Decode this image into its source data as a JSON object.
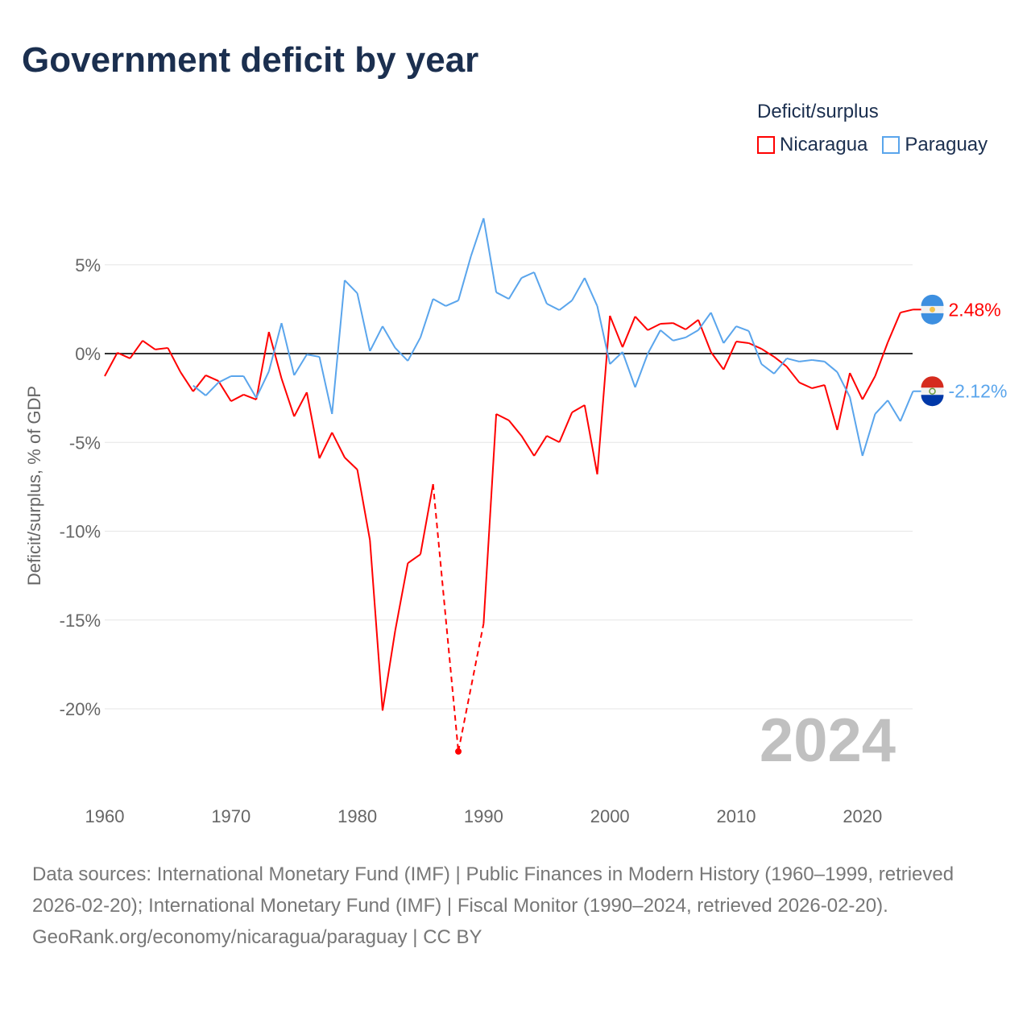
{
  "title": "Government deficit by year",
  "legend": {
    "title": "Deficit/surplus",
    "items": [
      {
        "label": "Nicaragua",
        "color": "#ff0000"
      },
      {
        "label": "Paraguay",
        "color": "#5aa5ec"
      }
    ]
  },
  "year_watermark": "2024",
  "footer": {
    "sources": "Data sources: International Monetary Fund (IMF) | Public Finances in Modern History (1960–1999, retrieved 2026-02-20); International Monetary Fund (IMF) | Fiscal Monitor (1990–2024, retrieved 2026-02-20).",
    "credit": "GeoRank.org/economy/nicaragua/paraguay | CC BY"
  },
  "chart_data": {
    "type": "line",
    "title": "Government deficit by year",
    "xlabel": "",
    "ylabel": "Deficit/surplus, % of GDP",
    "xlim": [
      1960,
      2024
    ],
    "ylim": [
      -24,
      8
    ],
    "x_ticks": [
      "1960",
      "1970",
      "1980",
      "1990",
      "2000",
      "2010",
      "2020"
    ],
    "y_ticks": [
      "5%",
      "0%",
      "-5%",
      "-10%",
      "-15%",
      "-20%"
    ],
    "y_tick_values": [
      5,
      0,
      -5,
      -10,
      -15,
      -20
    ],
    "grid": true,
    "legend_position": "top-right",
    "series": [
      {
        "name": "Nicaragua",
        "color": "#ff0000",
        "end_label": "2.48%",
        "start_year": 1960,
        "values": [
          -1.27,
          0.05,
          -0.27,
          0.73,
          0.23,
          0.32,
          -1.04,
          -2.13,
          -1.22,
          -1.54,
          -2.68,
          -2.31,
          -2.59,
          1.22,
          -1.4,
          -3.54,
          -2.18,
          -5.9,
          -4.44,
          -5.85,
          -6.53,
          -10.5,
          -20.1,
          -15.6,
          -11.8,
          -11.3,
          -7.35,
          null,
          -22.4,
          null,
          -15.2,
          -3.4,
          -3.76,
          -4.63,
          -5.76,
          -4.63,
          -4.99,
          -3.31,
          -2.9,
          -6.8,
          2.13,
          0.36,
          2.09,
          1.32,
          1.68,
          1.72,
          1.36,
          1.9,
          0.09,
          -0.9,
          0.68,
          0.59,
          0.27,
          -0.18,
          -0.73,
          -1.63,
          -1.95,
          -1.77,
          -4.3,
          -1.09,
          -2.58,
          -1.27,
          0.63,
          2.31,
          2.48
        ]
      },
      {
        "name": "Paraguay",
        "color": "#5aa5ec",
        "end_label": "-2.12%",
        "start_year": 1967,
        "values": [
          -1.8,
          -2.36,
          -1.63,
          -1.27,
          -1.27,
          -2.49,
          -1.0,
          1.72,
          -1.22,
          -0.05,
          -0.18,
          -3.4,
          4.13,
          3.4,
          0.14,
          1.54,
          0.32,
          -0.41,
          0.91,
          3.08,
          2.68,
          2.99,
          5.49,
          7.62,
          3.45,
          3.08,
          4.26,
          4.58,
          2.81,
          2.45,
          2.99,
          4.26,
          2.68,
          -0.59,
          0.09,
          -1.9,
          0,
          1.32,
          0.73,
          0.91,
          1.32,
          2.31,
          0.59,
          1.54,
          1.27,
          -0.59,
          -1.13,
          -0.27,
          -0.45,
          -0.36,
          -0.45,
          -1.04,
          -2.45,
          -5.76,
          -3.4,
          -2.63,
          -3.81,
          -2.12
        ]
      }
    ]
  }
}
